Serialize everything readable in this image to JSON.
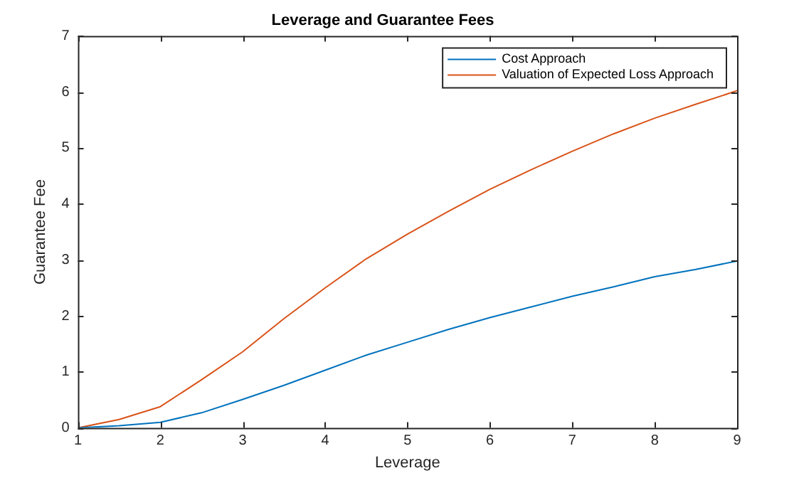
{
  "chart_data": {
    "type": "line",
    "title": "Leverage and Guarantee Fees",
    "xlabel": "Leverage",
    "ylabel": "Guarantee Fee",
    "x": [
      1,
      1.5,
      2,
      2.5,
      3,
      3.5,
      4,
      4.5,
      5,
      5.5,
      6,
      6.5,
      7,
      7.5,
      8,
      8.5,
      9
    ],
    "series": [
      {
        "name": "Cost Approach",
        "color": "#0072bd",
        "values": [
          0,
          0.04,
          0.1,
          0.27,
          0.51,
          0.76,
          1.03,
          1.3,
          1.53,
          1.76,
          1.97,
          2.16,
          2.35,
          2.52,
          2.7,
          2.83,
          2.98
        ]
      },
      {
        "name": "Valuation of Expected Loss Approach",
        "color": "#d95319",
        "values": [
          0,
          0.15,
          0.38,
          0.86,
          1.36,
          1.95,
          2.5,
          3.02,
          3.46,
          3.87,
          4.26,
          4.61,
          4.94,
          5.25,
          5.53,
          5.78,
          6.02
        ]
      }
    ],
    "xlim": [
      1,
      9
    ],
    "xticks": [
      1,
      2,
      3,
      4,
      5,
      6,
      7,
      8,
      9
    ],
    "ylim": [
      0,
      7
    ],
    "yticks": [
      0,
      1,
      2,
      3,
      4,
      5,
      6,
      7
    ],
    "grid": false,
    "legend": "top right",
    "marker": "none",
    "line_style": "solid"
  }
}
